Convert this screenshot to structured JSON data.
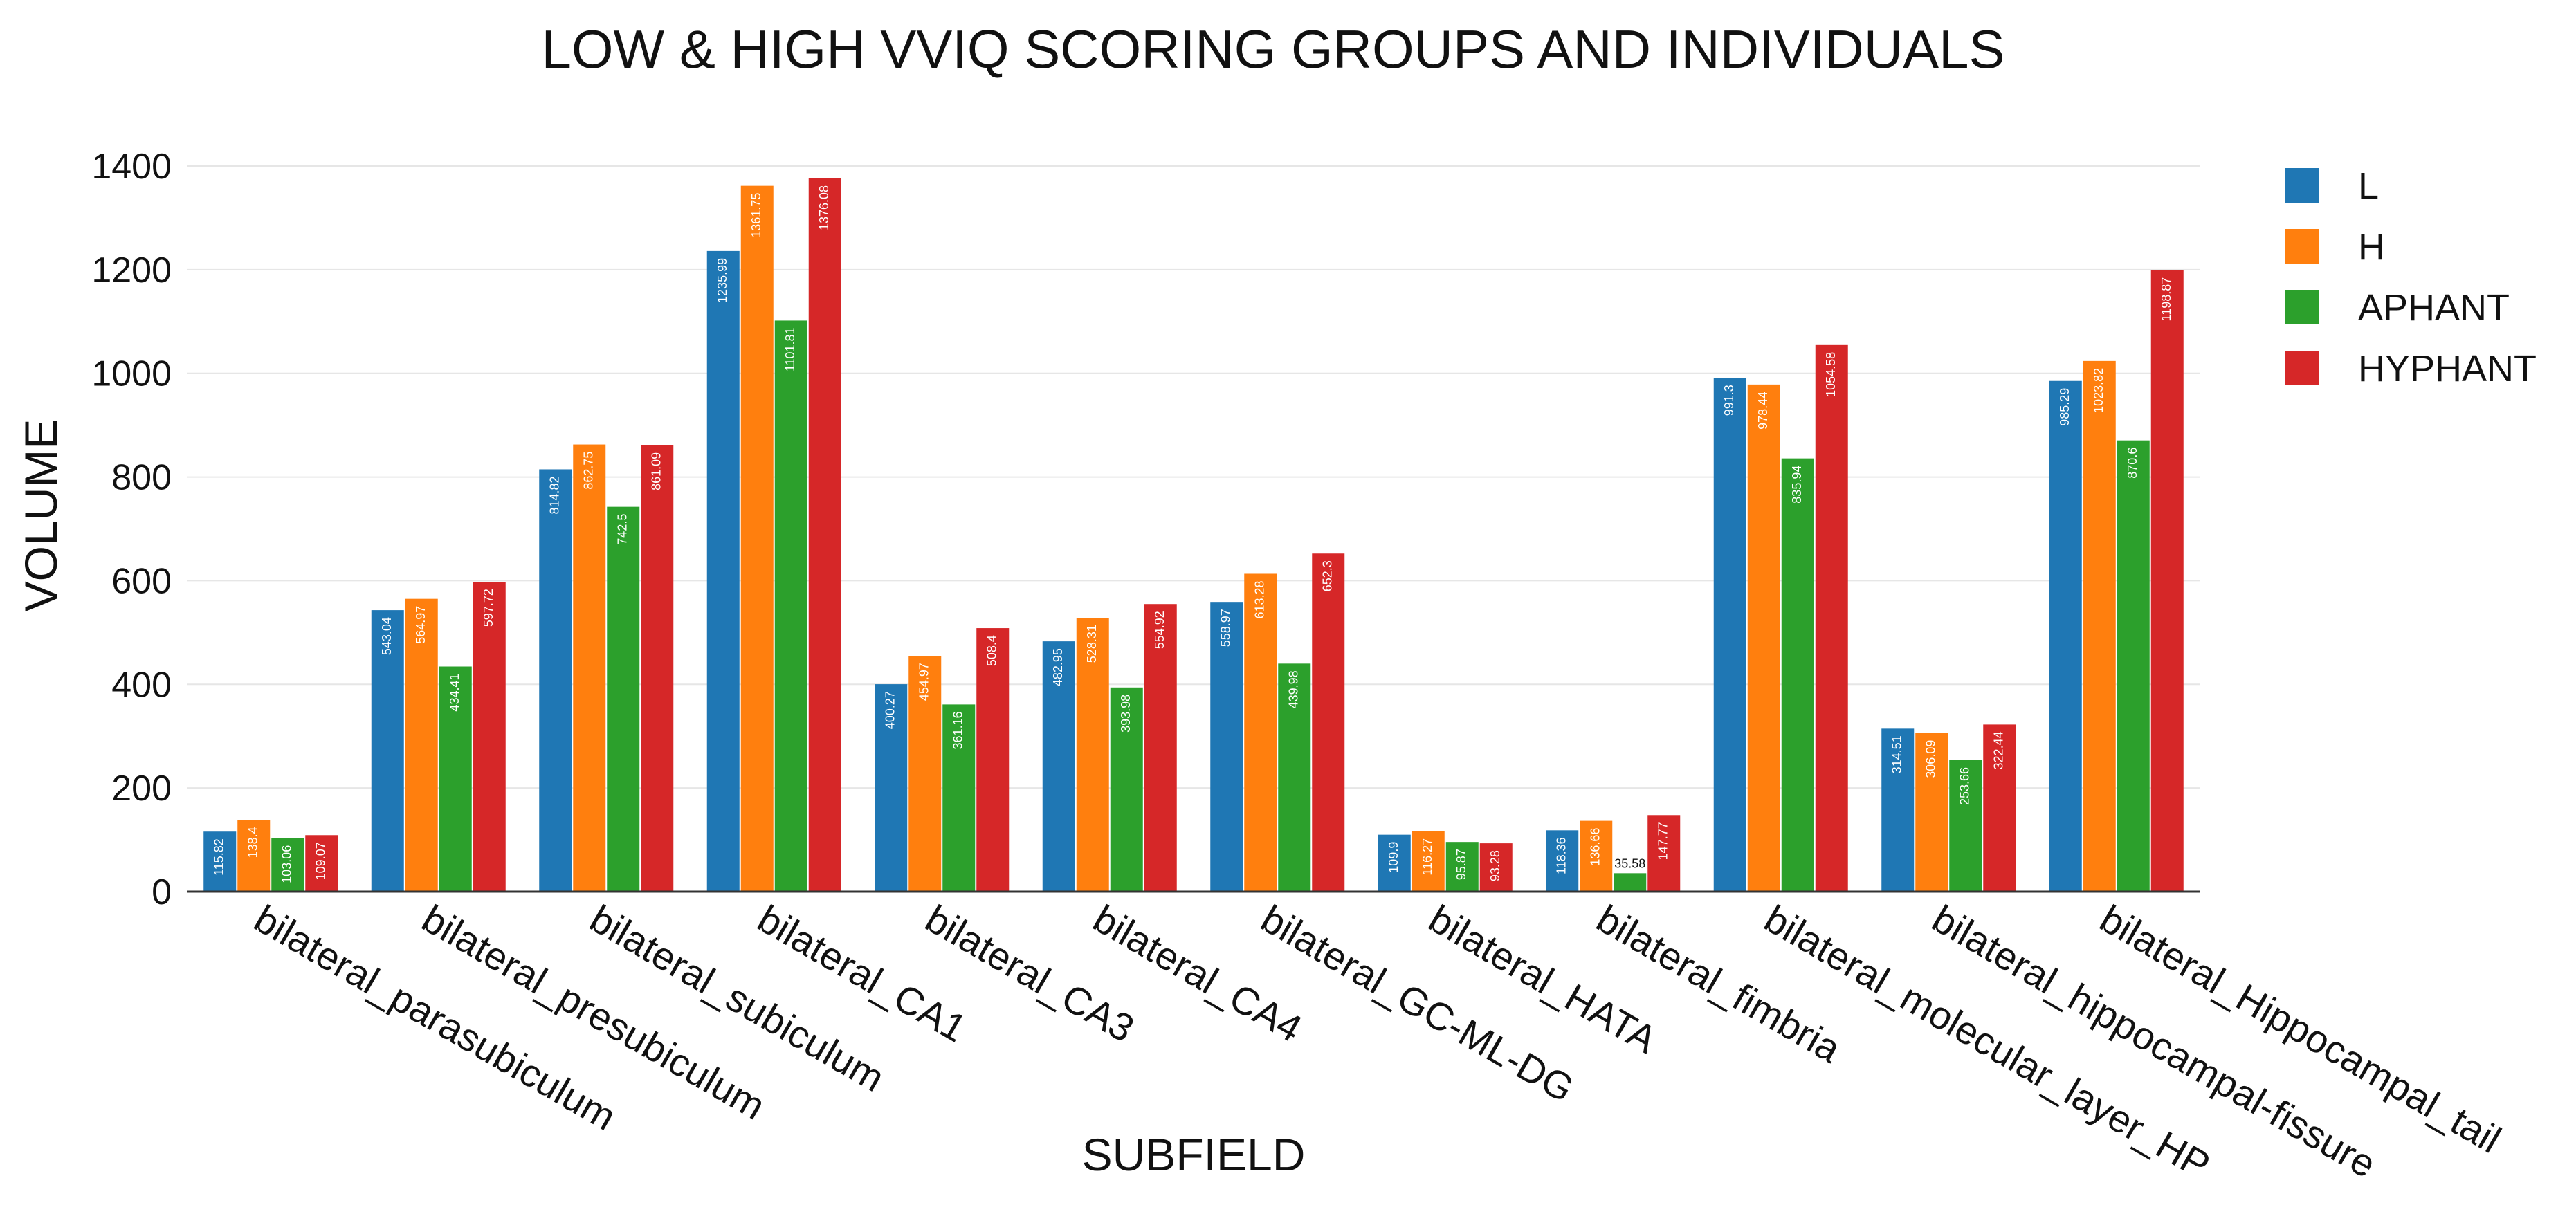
{
  "chart_data": {
    "type": "bar",
    "title": "LOW & HIGH VVIQ SCORING GROUPS AND INDIVIDUALS",
    "xlabel": "SUBFIELD",
    "ylabel": "VOLUME",
    "ylim": [
      0,
      1400
    ],
    "yticks": [
      0,
      200,
      400,
      600,
      800,
      1000,
      1200,
      1400
    ],
    "grid": true,
    "legend_position": "top-right",
    "categories": [
      "bilateral_parasubiculum",
      "bilateral_presubiculum",
      "bilateral_subiculum",
      "bilateral_CA1",
      "bilateral_CA3",
      "bilateral_CA4",
      "bilateral_GC-ML-DG",
      "bilateral_HATA",
      "bilateral_fimbria",
      "bilateral_molecular_layer_HP",
      "bilateral_hippocampal-fissure",
      "bilateral_Hippocampal_tail"
    ],
    "series": [
      {
        "name": "L",
        "color": "#1f77b4",
        "values": [
          115.82,
          543.04,
          814.82,
          1235.99,
          400.27,
          482.95,
          558.97,
          109.9,
          118.36,
          991.3,
          314.51,
          985.29
        ],
        "labels": [
          "115.82",
          "543.04",
          "814.82",
          "1235.99",
          "400.27",
          "482.95",
          "558.97",
          "109.9",
          "118.36",
          "991.3",
          "314.51",
          "985.29"
        ]
      },
      {
        "name": "H",
        "color": "#ff7f0e",
        "values": [
          138.4,
          564.97,
          862.75,
          1361.75,
          454.97,
          528.31,
          613.28,
          116.27,
          136.66,
          978.44,
          306.09,
          1023.82
        ],
        "labels": [
          "138.4",
          "564.97",
          "862.75",
          "1361.75",
          "454.97",
          "528.31",
          "613.28",
          "116.27",
          "136.66",
          "978.44",
          "306.09",
          "1023.82"
        ]
      },
      {
        "name": "APHANT",
        "color": "#2ca02c",
        "values": [
          103.06,
          434.41,
          742.5,
          1101.81,
          361.16,
          393.98,
          439.98,
          95.87,
          35.58,
          835.94,
          253.66,
          870.6
        ],
        "labels": [
          "103.06",
          "434.41",
          "742.5",
          "1101.81",
          "361.16",
          "393.98",
          "439.98",
          "95.87",
          "35.58",
          "835.94",
          "253.66",
          "870.6"
        ]
      },
      {
        "name": "HYPHANT",
        "color": "#d62728",
        "values": [
          109.07,
          597.72,
          861.09,
          1376.08,
          508.4,
          554.92,
          652.3,
          93.28,
          147.77,
          1054.58,
          322.44,
          1198.87
        ],
        "labels": [
          "109.07",
          "597.72",
          "861.09",
          "1376.08",
          "508.4",
          "554.92",
          "652.3",
          "93.28",
          "147.77",
          "1054.58",
          "322.44",
          "1198.87"
        ]
      }
    ]
  }
}
